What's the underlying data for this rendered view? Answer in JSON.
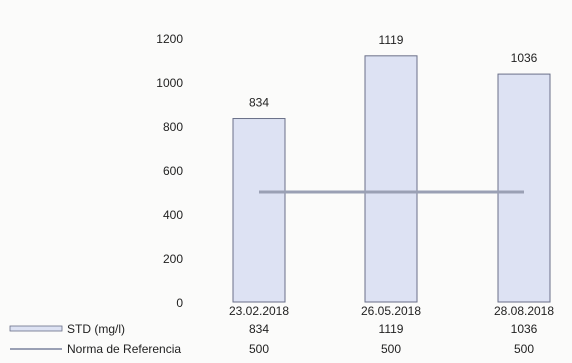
{
  "colors": {
    "bar_fill": "#dde2f3",
    "bar_stroke": "#6a6f88",
    "reference_line": "#9aa0b4",
    "text": "#222222",
    "background": "#fbfbfa"
  },
  "chart_data": {
    "type": "bar",
    "categories": [
      "23.02.2018",
      "26.05.2018",
      "28.08.2018"
    ],
    "series": [
      {
        "name": "STD (mg/l)",
        "type": "bar",
        "values": [
          834,
          1119,
          1036
        ]
      },
      {
        "name": "Norma de Referencia",
        "type": "line",
        "values": [
          500,
          500,
          500
        ]
      }
    ],
    "data_labels": [
      "834",
      "1119",
      "1036"
    ],
    "yticks": [
      "0",
      "200",
      "400",
      "600",
      "800",
      "1000",
      "1200"
    ],
    "ylim": [
      0,
      1200
    ],
    "grid": false,
    "legend": "data-table-below",
    "table": {
      "rows": [
        {
          "label": "STD (mg/l)",
          "values": [
            "834",
            "1119",
            "1036"
          ]
        },
        {
          "label": "Norma de Referencia",
          "values": [
            "500",
            "500",
            "500"
          ]
        }
      ]
    }
  }
}
